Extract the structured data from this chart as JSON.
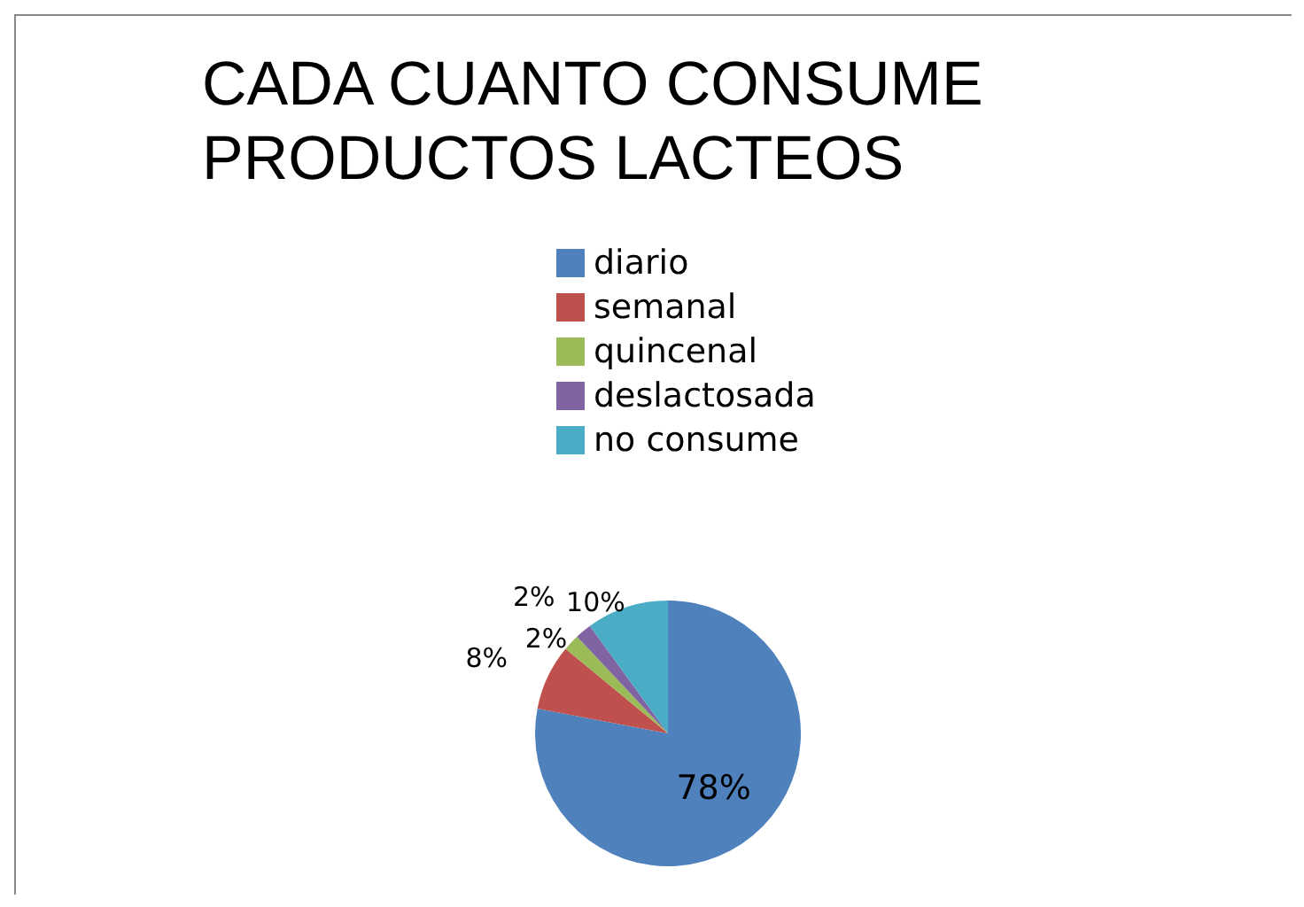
{
  "chart_data": {
    "type": "pie",
    "title": "CADA CUANTO CONSUME PRODUCTOS LACTEOS",
    "categories": [
      "diario",
      "semanal",
      "quincenal",
      "deslactosada",
      "no consume"
    ],
    "values": [
      78,
      8,
      2,
      2,
      10
    ],
    "colors": [
      "#4f81bd",
      "#c0504d",
      "#9bbb59",
      "#8064a2",
      "#4bacc6"
    ],
    "value_labels": [
      "78%",
      "8%",
      "2%",
      "2%",
      "10%"
    ],
    "legend": "top"
  }
}
